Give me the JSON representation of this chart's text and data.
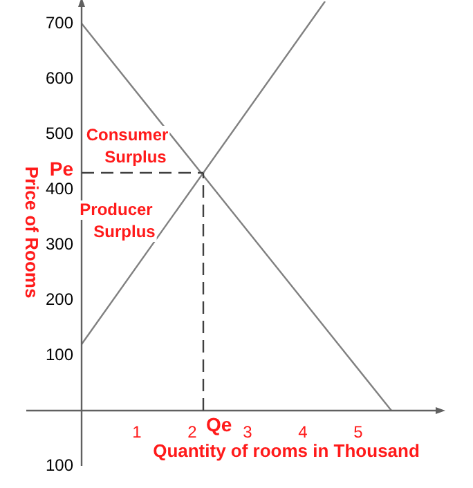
{
  "chart_data": {
    "type": "line",
    "xlabel": "Quantity of rooms in Thousand",
    "ylabel": "Price of Rooms",
    "xlim": [
      -1,
      6.5
    ],
    "ylim": [
      -100,
      740
    ],
    "xticks": [
      1,
      2,
      3,
      4,
      5
    ],
    "yticks": [
      {
        "value": -100,
        "label": "100"
      },
      100,
      200,
      300,
      400,
      {
        "value": 430,
        "label": "Pe"
      },
      500,
      600,
      700
    ],
    "series": [
      {
        "color": "#808080",
        "x": [
          0,
          5.6
        ],
        "values": [
          700,
          0
        ]
      },
      {
        "color": "#808080",
        "x": [
          0,
          4.4
        ],
        "values": [
          120,
          740
        ]
      }
    ],
    "ref_lines": [
      {
        "axis": "y",
        "value": 430,
        "line_style": "dashed",
        "color": "#404040"
      },
      {
        "axis": "x",
        "value": 2.2,
        "line_style": "dashed",
        "color": "#404040"
      }
    ],
    "annotations": [
      "Consumer Surplus",
      "Producer Surplus",
      {
        "text": "Qe",
        "x": 2.2,
        "y": 0
      }
    ],
    "marker": "none",
    "line_style": "solid",
    "grid": false,
    "legend": false
  }
}
